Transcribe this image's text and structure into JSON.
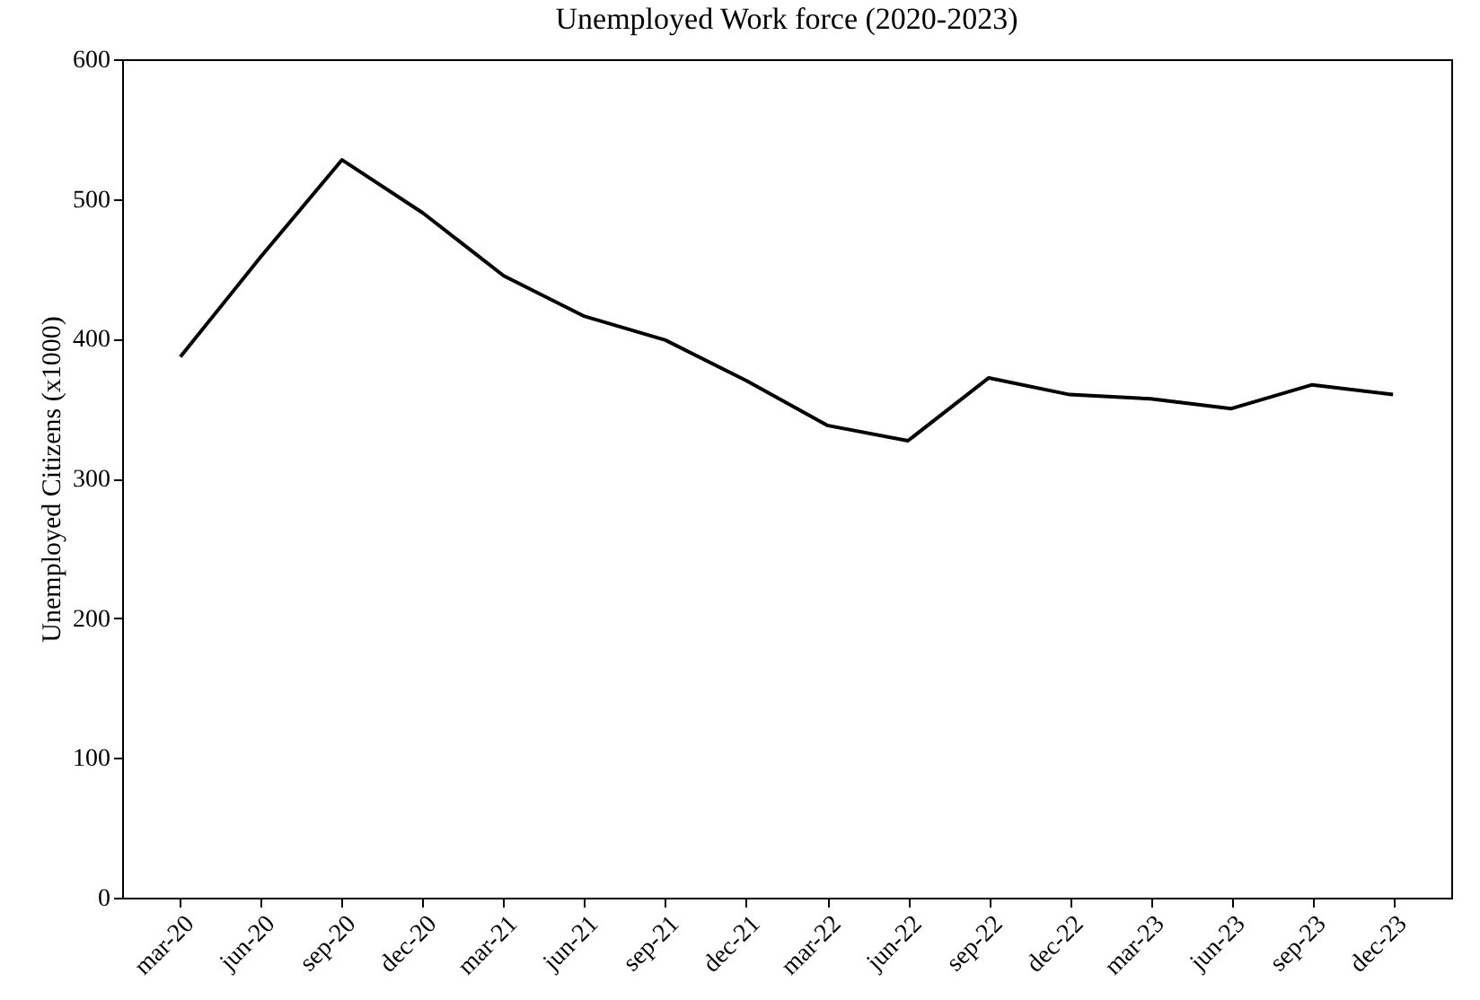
{
  "chart_data": {
    "type": "line",
    "title": "Unemployed Work force (2020-2023)",
    "ylabel": "Unemployed Citizens (x1000)",
    "categories": [
      "mar-20",
      "jun-20",
      "sep-20",
      "dec-20",
      "mar-21",
      "jun-21",
      "sep-21",
      "dec-21",
      "mar-22",
      "jun-22",
      "sep-22",
      "dec-22",
      "mar-23",
      "jun-23",
      "sep-23",
      "dec-23"
    ],
    "series": [
      {
        "color": "#000000",
        "values": [
          387,
          459,
          528,
          490,
          445,
          416,
          399,
          370,
          338,
          327,
          372,
          360,
          357,
          350,
          367,
          360
        ]
      }
    ],
    "ylim": [
      0,
      600
    ],
    "yticks": [
      0,
      100,
      200,
      300,
      400,
      500,
      600
    ],
    "grid": false,
    "marker": "none",
    "line_style": "solid"
  }
}
